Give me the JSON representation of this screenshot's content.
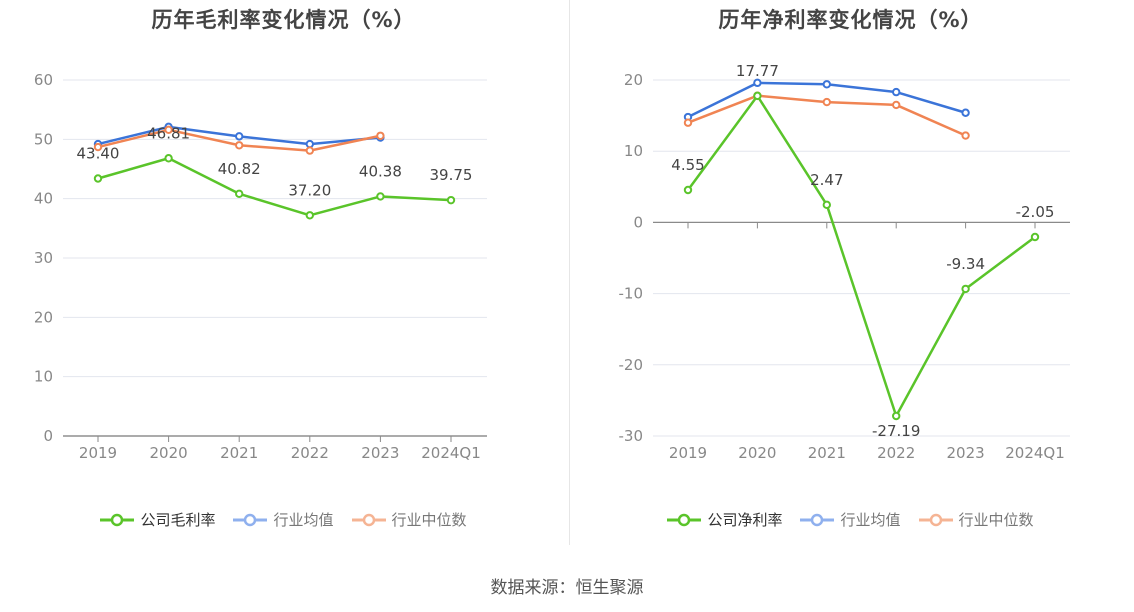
{
  "colors": {
    "company": "#5ac42a",
    "industry_avg": "#3b74d8",
    "industry_median": "#f08453"
  },
  "charts": [
    {
      "title": "历年毛利率变化情况（%）",
      "legend": [
        "公司毛利率",
        "行业均值",
        "行业中位数"
      ]
    },
    {
      "title": "历年净利率变化情况（%）",
      "legend": [
        "公司净利率",
        "行业均值",
        "行业中位数"
      ]
    }
  ],
  "footer": "数据来源：恒生聚源",
  "chart_data": [
    {
      "type": "line",
      "title": "历年毛利率变化情况（%）",
      "categories": [
        "2019",
        "2020",
        "2021",
        "2022",
        "2023",
        "2024Q1"
      ],
      "ylim": [
        0,
        60
      ],
      "yticks": [
        0,
        10,
        20,
        30,
        40,
        50,
        60
      ],
      "grid": true,
      "legend_position": "bottom",
      "series": [
        {
          "name": "公司毛利率",
          "values": [
            43.4,
            46.81,
            40.82,
            37.2,
            40.38,
            39.75
          ],
          "labels": [
            "43.40",
            "46.81",
            "40.82",
            "37.20",
            "40.38",
            "39.75"
          ]
        },
        {
          "name": "行业均值",
          "values": [
            49.2,
            52.1,
            50.5,
            49.2,
            50.3,
            null
          ]
        },
        {
          "name": "行业中位数",
          "values": [
            48.7,
            51.6,
            49.0,
            48.1,
            50.6,
            null
          ]
        }
      ]
    },
    {
      "type": "line",
      "title": "历年净利率变化情况（%）",
      "categories": [
        "2019",
        "2020",
        "2021",
        "2022",
        "2023",
        "2024Q1"
      ],
      "ylim": [
        -30,
        20
      ],
      "yticks": [
        -30,
        -20,
        -10,
        0,
        10,
        20
      ],
      "grid": true,
      "legend_position": "bottom",
      "series": [
        {
          "name": "公司净利率",
          "values": [
            4.55,
            17.77,
            2.47,
            -27.19,
            -9.34,
            -2.05
          ],
          "labels": [
            "4.55",
            "17.77",
            "2.47",
            "-27.19",
            "-9.34",
            "-2.05"
          ]
        },
        {
          "name": "行业均值",
          "values": [
            14.8,
            19.6,
            19.4,
            18.3,
            15.4,
            null
          ]
        },
        {
          "name": "行业中位数",
          "values": [
            14.0,
            17.8,
            16.9,
            16.5,
            12.2,
            null
          ]
        }
      ]
    }
  ]
}
